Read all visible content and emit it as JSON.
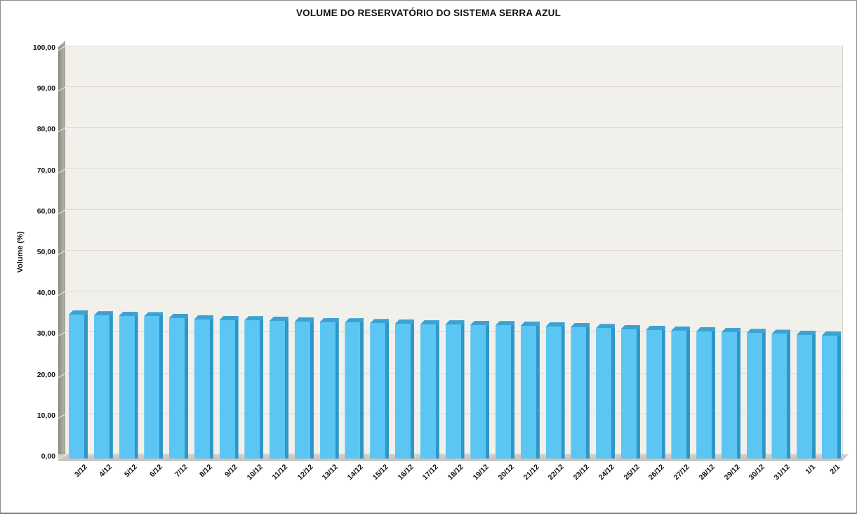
{
  "chart_data": {
    "type": "bar",
    "title": "VOLUME DO RESERVATÓRIO DO SISTEMA SERRA AZUL",
    "xlabel": "",
    "ylabel": "Volume (%)",
    "ylim": [
      0,
      100
    ],
    "ytick_step": 10,
    "ytick_labels_bottom_to_top": [
      "0,00",
      "10,00",
      "20,00",
      "30,00",
      "40,00",
      "50,00",
      "60,00",
      "70,00",
      "80,00",
      "90,00",
      "100,00"
    ],
    "grid": true,
    "legend_position": "none",
    "decimal_separator": ",",
    "categories": [
      "3/12",
      "4/12",
      "5/12",
      "6/12",
      "7/12",
      "8/12",
      "9/12",
      "10/12",
      "11/12",
      "12/12",
      "13/12",
      "14/12",
      "15/12",
      "16/12",
      "17/12",
      "18/12",
      "19/12",
      "20/12",
      "21/12",
      "22/12",
      "23/12",
      "24/12",
      "25/12",
      "26/12",
      "27/12",
      "28/12",
      "29/12",
      "30/12",
      "31/12",
      "1/1",
      "2/1"
    ],
    "values": [
      35.2,
      35.0,
      34.9,
      34.8,
      34.4,
      34.1,
      33.9,
      33.8,
      33.7,
      33.5,
      33.4,
      33.3,
      33.1,
      33.0,
      32.8,
      32.8,
      32.7,
      32.6,
      32.5,
      32.3,
      32.2,
      31.9,
      31.7,
      31.5,
      31.3,
      31.1,
      30.9,
      30.7,
      30.5,
      30.3,
      30.1
    ],
    "value_labels": [
      "35,2",
      "35,0",
      "34,9",
      "34,8",
      "34,4",
      "34,1",
      "33,9",
      "33,8",
      "33,7",
      "33,5",
      "33,4",
      "33,3",
      "33,1",
      "33,0",
      "32,8",
      "32,8",
      "32,7",
      "32,6",
      "32,5",
      "32,3",
      "32,2",
      "31,9",
      "31,7",
      "31,5",
      "31,3",
      "31,1",
      "30,9",
      "30,7",
      "30,5",
      "30,3",
      "30,1"
    ],
    "colors": {
      "bar_front": "#5bc6f3",
      "bar_side": "#2f96c8",
      "bar_top": "#3ca2d3",
      "plot_background": "#f1f0eb",
      "gridline": "#dcdad2",
      "side_wall": "#a09e95",
      "floor": "#c9c7be",
      "text": "#111111",
      "frame_border": "#8c8c8c"
    }
  }
}
